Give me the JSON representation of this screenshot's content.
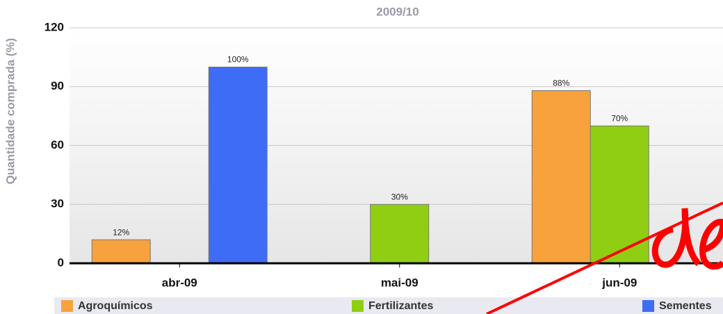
{
  "chart_data": {
    "type": "bar",
    "title": "2009/10",
    "y_label": "Quantidade comprada (%)",
    "categories": [
      "abr-09",
      "mai-09",
      "jun-09"
    ],
    "series": [
      {
        "name": "Agroquímicos",
        "color": "#f7a23c",
        "values": [
          12,
          null,
          88
        ],
        "value_labels": [
          "12%",
          null,
          "88%"
        ]
      },
      {
        "name": "Fertilizantes",
        "color": "#8fce12",
        "values": [
          null,
          30,
          70
        ],
        "value_labels": [
          null,
          "30%",
          "70%"
        ]
      },
      {
        "name": "Sementes",
        "color": "#3f6cf5",
        "values": [
          100,
          null,
          null
        ],
        "value_labels": [
          "100%",
          null,
          null
        ]
      }
    ],
    "ylim": [
      0,
      120
    ],
    "yticks": [
      0,
      30,
      60,
      90,
      120
    ],
    "grid": true
  }
}
